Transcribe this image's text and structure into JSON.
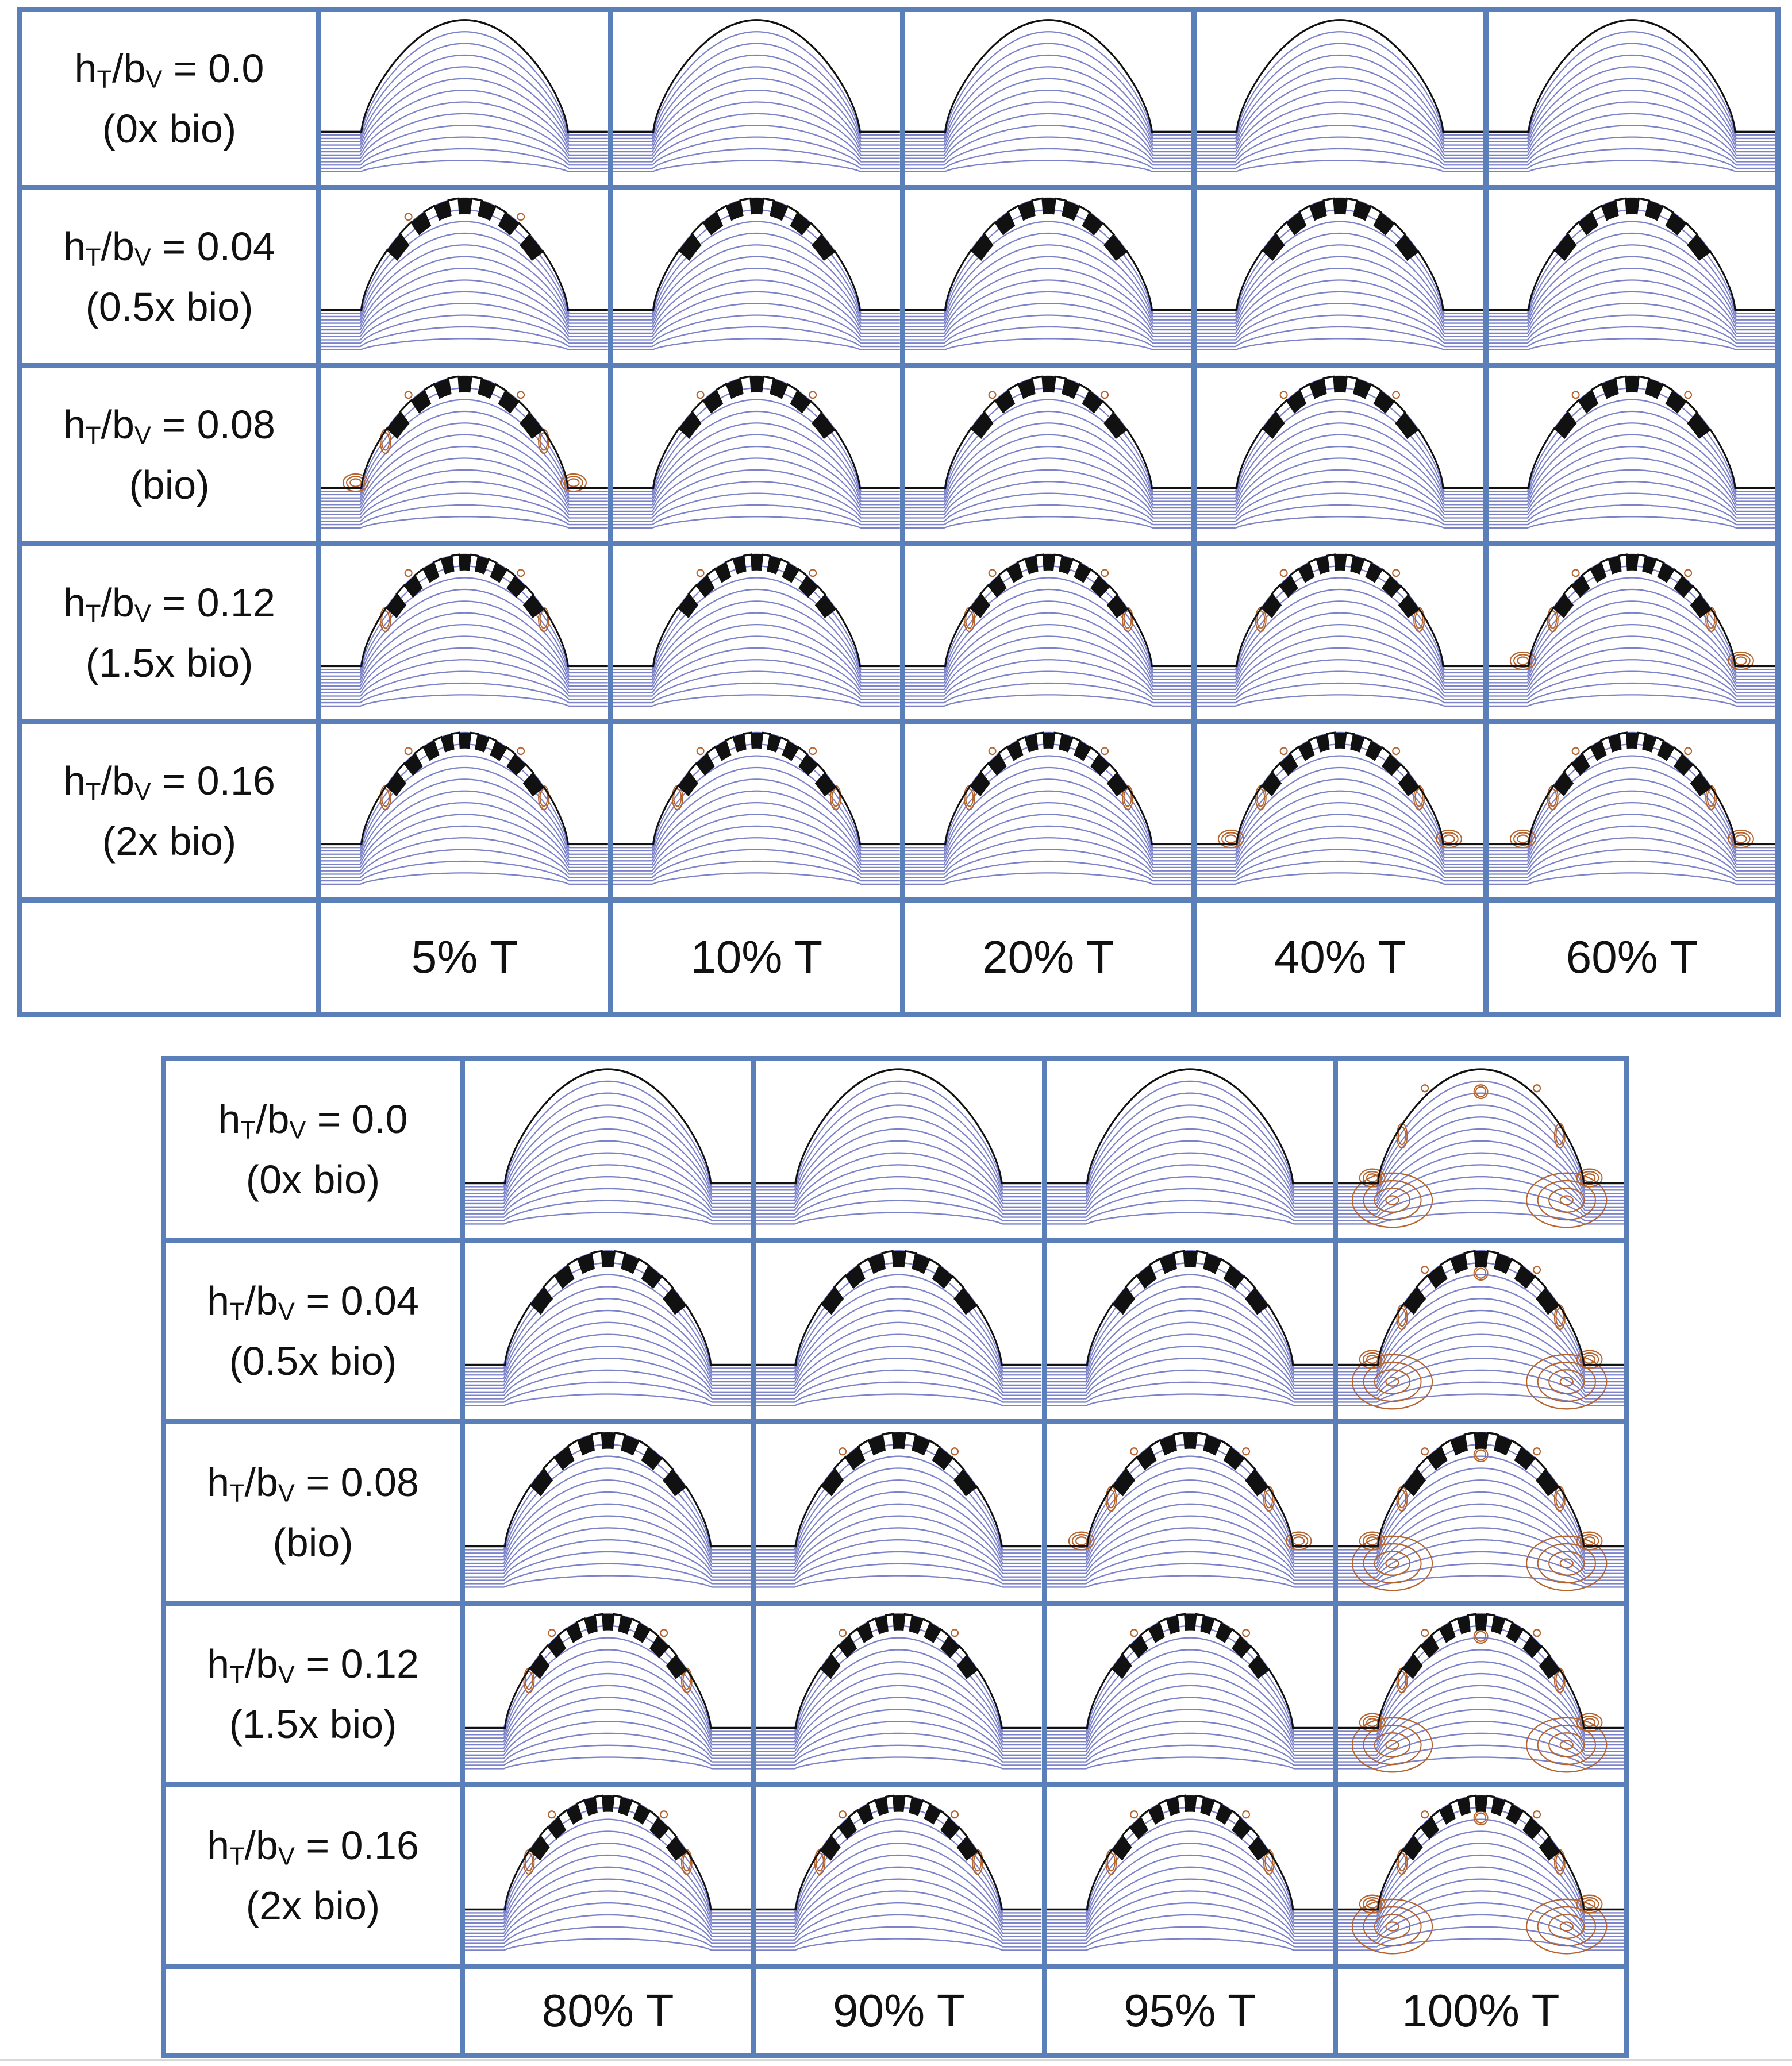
{
  "figure": {
    "top_panel": {
      "row_labels": [
        {
          "ratio": "h_T/b_V = 0.0",
          "sub_T": "T",
          "sub_V": "V",
          "value": "0.0",
          "bio": "(0x bio)"
        },
        {
          "ratio": "h_T/b_V = 0.04",
          "sub_T": "T",
          "sub_V": "V",
          "value": "0.04",
          "bio": "(0.5x bio)"
        },
        {
          "ratio": "h_T/b_V = 0.08",
          "sub_T": "T",
          "sub_V": "V",
          "value": "0.08",
          "bio": "(bio)"
        },
        {
          "ratio": "h_T/b_V = 0.12",
          "sub_T": "T",
          "sub_V": "V",
          "value": "0.12",
          "bio": "(1.5x bio)"
        },
        {
          "ratio": "h_T/b_V = 0.16",
          "sub_T": "T",
          "sub_V": "V",
          "value": "0.16",
          "bio": "(2x bio)"
        }
      ],
      "column_labels": [
        "5% T",
        "10% T",
        "20% T",
        "40% T",
        "60% T"
      ],
      "teeth_per_row": [
        0,
        7,
        7,
        9,
        9
      ],
      "vortex_level_per_column": [
        [
          0,
          0,
          0,
          0,
          0
        ],
        [
          1,
          0,
          0,
          0,
          0
        ],
        [
          3,
          1,
          1,
          1,
          1
        ],
        [
          2,
          1,
          2,
          2,
          3
        ],
        [
          2,
          2,
          2,
          3,
          3
        ]
      ]
    },
    "bottom_panel": {
      "row_labels": [
        {
          "ratio": "h_T/b_V = 0.0",
          "sub_T": "T",
          "sub_V": "V",
          "value": "0.0",
          "bio": "(0x bio)"
        },
        {
          "ratio": "h_T/b_V = 0.04",
          "sub_T": "T",
          "sub_V": "V",
          "value": "0.04",
          "bio": "(0.5x bio)"
        },
        {
          "ratio": "h_T/b_V = 0.08",
          "sub_T": "T",
          "sub_V": "V",
          "value": "0.08",
          "bio": "(bio)"
        },
        {
          "ratio": "h_T/b_V = 0.12",
          "sub_T": "T",
          "sub_V": "V",
          "value": "0.12",
          "bio": "(1.5x bio)"
        },
        {
          "ratio": "h_T/b_V = 0.16",
          "sub_T": "T",
          "sub_V": "V",
          "value": "0.16",
          "bio": "(2x bio)"
        }
      ],
      "column_labels": [
        "80% T",
        "90% T",
        "95% T",
        "100% T"
      ],
      "teeth_per_row": [
        0,
        7,
        7,
        9,
        9
      ],
      "vortex_level_per_column": [
        [
          0,
          0,
          0,
          4
        ],
        [
          0,
          0,
          0,
          4
        ],
        [
          0,
          1,
          3,
          4
        ],
        [
          2,
          1,
          1,
          4
        ],
        [
          2,
          2,
          2,
          4
        ]
      ]
    },
    "colors": {
      "border": "#5b7fb9",
      "streamline": "#7b82c9",
      "outline": "#111111",
      "vortex": "#b5642e"
    }
  }
}
